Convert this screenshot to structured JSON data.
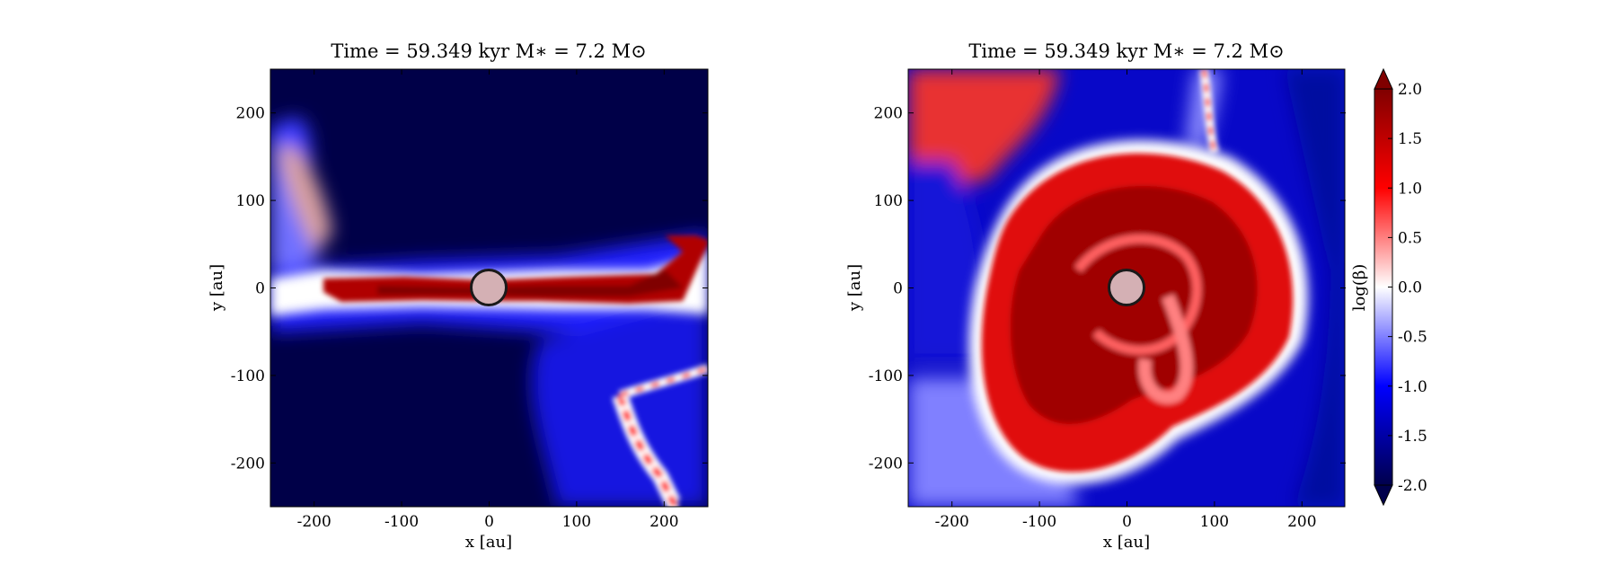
{
  "chart_data": [
    {
      "type": "heatmap",
      "title": "Time = 59.349 kyr    M∗ = 7.2 M⊙",
      "xlabel": "x [au]",
      "ylabel": "y [au]",
      "xlim": [
        -250,
        250
      ],
      "ylim": [
        -250,
        250
      ],
      "xticks": [
        -200,
        -100,
        0,
        100,
        200
      ],
      "yticks": [
        200,
        100,
        0,
        -100,
        -200
      ],
      "quantity": "log(β)",
      "description_features": {
        "background_value": -2.0,
        "structure": "horizontal high-beta band along y=0 from x=-250 to 200, kinked up near x=180-240 at y=50; high-beta filament from (160,-120) down to (220,-250); moderate-beta region upper-left x<-150, y 0..150",
        "star": {
          "x": 0,
          "y": 0,
          "radius_au": 20
        }
      }
    },
    {
      "type": "heatmap",
      "title": "Time = 59.349 kyr    M∗ = 7.2 M⊙",
      "xlabel": "x [au]",
      "ylabel": "y [au]",
      "xlim": [
        -250,
        250
      ],
      "ylim": [
        -250,
        250
      ],
      "xticks": [
        -200,
        -100,
        0,
        100,
        200
      ],
      "yticks": [
        200,
        100,
        0,
        -100,
        -200
      ],
      "quantity": "log(β)",
      "description_features": {
        "background_value": -1.5,
        "structure": "large spiral disk of high beta centred near (20,-20) with radius ~180 au; high beta upper-left corner; low-beta channels on left and right edges",
        "star": {
          "x": 0,
          "y": 0,
          "radius_au": 20
        }
      }
    }
  ],
  "colorbar": {
    "label": "log(β)",
    "min": -2.0,
    "max": 2.0,
    "ticks": [
      "2.0",
      "1.5",
      "1.0",
      "0.5",
      "0.0",
      "-0.5",
      "-1.0",
      "-1.5",
      "-2.0"
    ],
    "extend": "both",
    "colormap": "seismic",
    "colors": {
      "low": "#000040",
      "mid_low": "#0000ff",
      "mid": "#ffffff",
      "mid_high": "#ff0000",
      "high": "#800000"
    }
  }
}
